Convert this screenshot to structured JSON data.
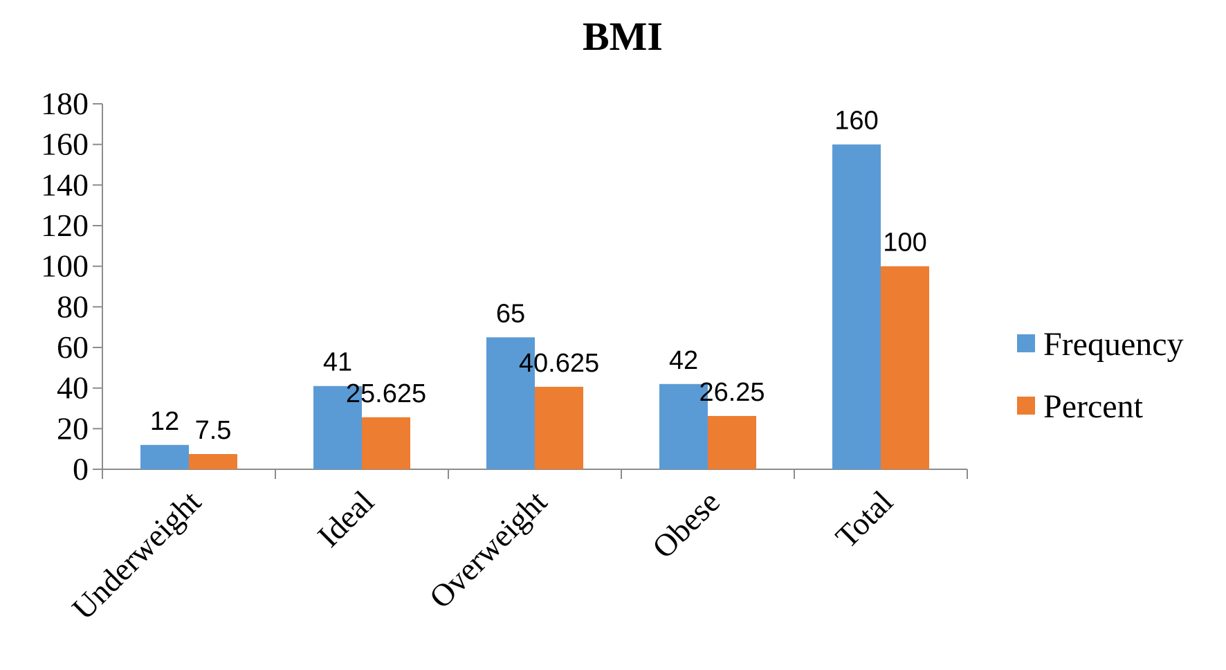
{
  "chart_data": {
    "type": "bar",
    "title": "BMI",
    "categories": [
      "Underweight",
      "Ideal",
      "Overweight",
      "Obese",
      "Total"
    ],
    "series": [
      {
        "name": "Frequency",
        "values": [
          12,
          41,
          65,
          42,
          160
        ],
        "labels": [
          "12",
          "41",
          "65",
          "42",
          "160"
        ],
        "color": "#5b9bd5"
      },
      {
        "name": "Percent",
        "values": [
          7.5,
          25.625,
          40.625,
          26.25,
          100
        ],
        "labels": [
          "7.5",
          "25.625",
          "40.625",
          "26.25",
          "100"
        ],
        "color": "#ed7d31"
      }
    ],
    "ylim": [
      0,
      180
    ],
    "yticks": [
      "0",
      "20",
      "40",
      "60",
      "80",
      "100",
      "120",
      "140",
      "160",
      "180"
    ],
    "xlabel": "",
    "ylabel": "",
    "grid": false,
    "legend_position": "right"
  }
}
